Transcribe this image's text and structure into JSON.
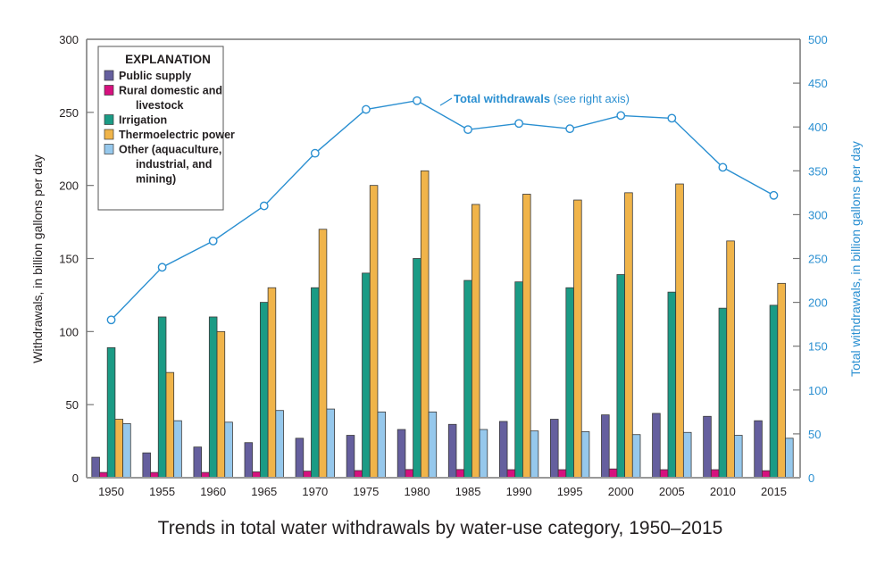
{
  "chart_data": {
    "type": "bar",
    "title": "Trends in total water withdrawals by water-use category, 1950–2015",
    "xlabel": "",
    "ylabel": "Withdrawals, in billion gallons per day",
    "ylabel_right": "Total withdrawals, in billion gallons per day",
    "ylim": [
      0,
      300
    ],
    "ylim_right": [
      0,
      500
    ],
    "yticks": [
      "0",
      "50",
      "100",
      "150",
      "200",
      "250",
      "300"
    ],
    "yticks_right": [
      "0",
      "50",
      "100",
      "150",
      "200",
      "250",
      "300",
      "350",
      "400",
      "450",
      "500"
    ],
    "categories": [
      "1950",
      "1955",
      "1960",
      "1965",
      "1970",
      "1975",
      "1980",
      "1985",
      "1990",
      "1995",
      "2000",
      "2005",
      "2010",
      "2015"
    ],
    "legend": {
      "title": "EXPLANATION",
      "placement": "top-left",
      "entries": [
        {
          "lines": [
            "Public supply"
          ]
        },
        {
          "lines": [
            "Rural domestic and",
            "livestock"
          ]
        },
        {
          "lines": [
            "Irrigation"
          ]
        },
        {
          "lines": [
            "Thermoelectric power"
          ]
        },
        {
          "lines": [
            "Other (aquaculture,",
            "industrial, and",
            "mining)"
          ]
        }
      ]
    },
    "series": [
      {
        "name": "Public supply",
        "color": "#655f9e",
        "values": [
          14,
          17,
          21,
          24,
          27,
          29,
          33,
          36.5,
          38.5,
          40,
          43,
          44,
          42,
          39
        ]
      },
      {
        "name": "Rural domestic and livestock",
        "color": "#d6117e",
        "values": [
          3.6,
          3.6,
          3.6,
          4,
          4.5,
          4.9,
          5.6,
          5.6,
          5.5,
          5.5,
          6,
          5.5,
          5.5,
          4.8
        ]
      },
      {
        "name": "Irrigation",
        "color": "#1b9b85",
        "values": [
          89,
          110,
          110,
          120,
          130,
          140,
          150,
          135,
          134,
          130,
          139,
          127,
          116,
          118
        ]
      },
      {
        "name": "Thermoelectric power",
        "color": "#f0b44a",
        "values": [
          40,
          72,
          100,
          130,
          170,
          200,
          210,
          187,
          194,
          190,
          195,
          201,
          162,
          133
        ]
      },
      {
        "name": "Other (aquaculture, industrial, and mining)",
        "color": "#96c8ec",
        "values": [
          37,
          39,
          38,
          46,
          47,
          45,
          45,
          33,
          32,
          31.5,
          29.5,
          31,
          29,
          27
        ]
      }
    ],
    "line_series": {
      "name": "Total withdrawals",
      "axis": "right",
      "color": "#2a8fd1",
      "label": "Total withdrawals",
      "label_suffix": " (see right axis)",
      "values": [
        180,
        240,
        270,
        310,
        370,
        420,
        430,
        397,
        404,
        398,
        413,
        410,
        354,
        322
      ]
    },
    "grid": false
  }
}
